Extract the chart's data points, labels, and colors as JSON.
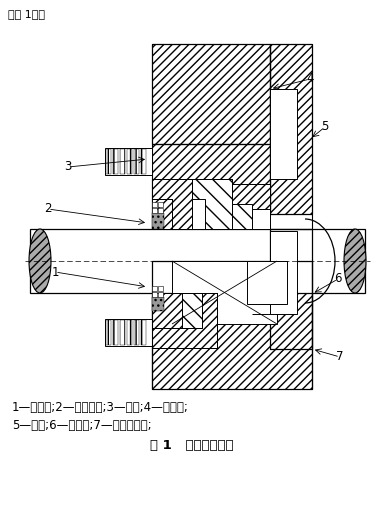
{
  "title_text": "图 1   减速机治漏图",
  "caption_line1": "1—回油口;2—骨架油封;3—端盖;4—调整环;",
  "caption_line2": "5—轴承;6—加油槽;7—减速机壳体;",
  "header_text": "（图 1）。",
  "bg_color": "#ffffff",
  "line_color": "#000000",
  "title_fontsize": 9,
  "caption_fontsize": 8.5,
  "label_fontsize": 8.5,
  "dpi": 100,
  "fig_w": 3.85,
  "fig_h": 5.19
}
